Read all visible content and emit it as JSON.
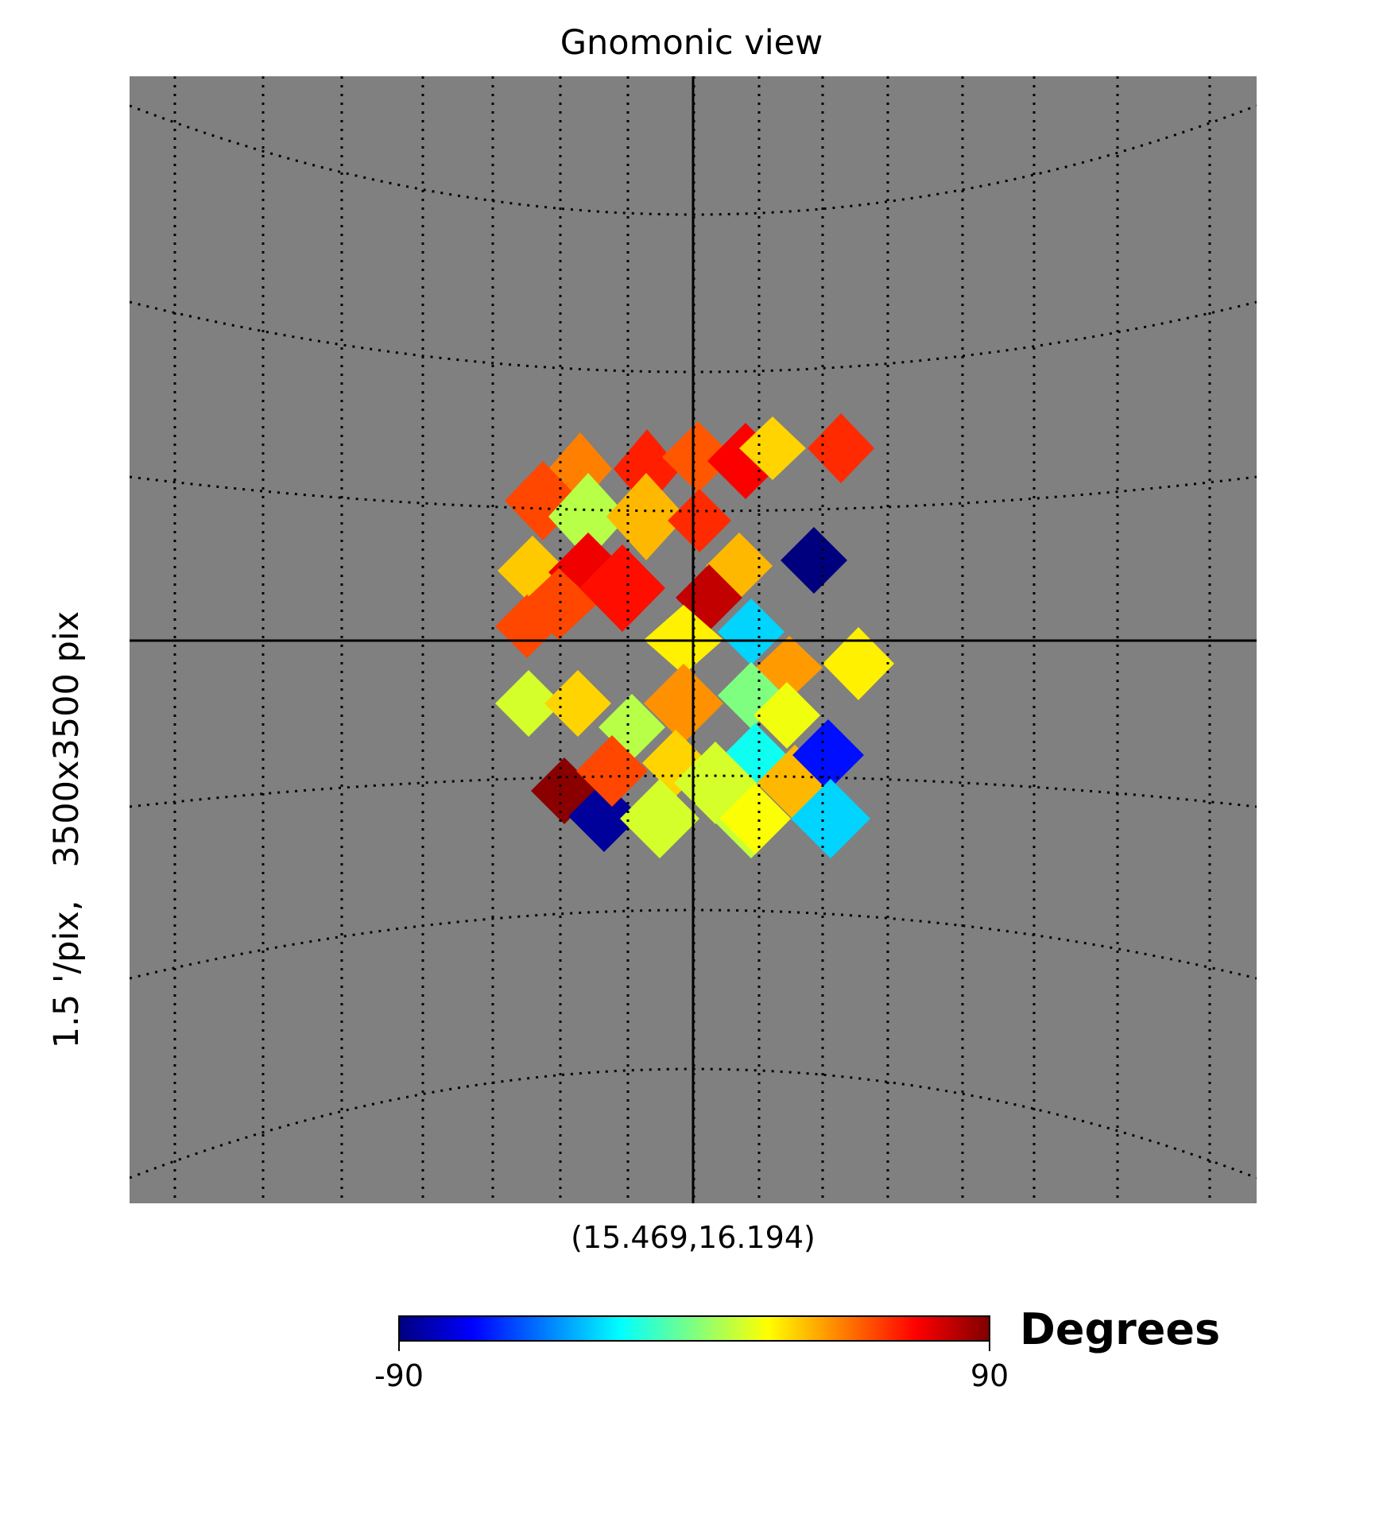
{
  "chart_data": {
    "type": "heatmap",
    "title": "Gnomonic view",
    "center_coords": "(15.469,16.194)",
    "side_label": "1.5 '/pix,   3500x3500 pix",
    "background_color": "#808080",
    "graticule": {
      "style": "dotted",
      "color": "#000000"
    },
    "crosshair": true,
    "colormap": "jet",
    "colorbar": {
      "label": "Degrees",
      "min": -90,
      "max": 90,
      "min_label": "-90",
      "max_label": "90",
      "stops": [
        "#00007f",
        "#0000ff",
        "#007fff",
        "#00ffff",
        "#7fff7f",
        "#ffff00",
        "#ff7f00",
        "#ff0000",
        "#7f0000"
      ]
    },
    "cells": [
      {
        "value": 45
      },
      {
        "value": 62
      },
      {
        "value": 55
      },
      {
        "value": 10
      },
      {
        "value": 35
      },
      {
        "value": 32
      },
      {
        "value": 70
      },
      {
        "value": 52
      },
      {
        "value": 68
      },
      {
        "value": 30
      },
      {
        "value": 60
      },
      {
        "value": 55
      },
      {
        "value": 65
      },
      {
        "value": 60
      },
      {
        "value": 35
      },
      {
        "value": 78
      },
      {
        "value": -90
      },
      {
        "value": 55
      },
      {
        "value": 25
      },
      {
        "value": -30
      },
      {
        "value": 25
      },
      {
        "value": 40
      },
      {
        "value": 0
      },
      {
        "value": 15
      },
      {
        "value": 30
      },
      {
        "value": 10
      },
      {
        "value": 42
      },
      {
        "value": 20
      },
      {
        "value": 30
      },
      {
        "value": -20
      },
      {
        "value": 15
      },
      {
        "value": 35
      },
      {
        "value": 12
      },
      {
        "value": -65
      },
      {
        "value": 88
      },
      {
        "value": -85
      },
      {
        "value": 55
      },
      {
        "value": 15
      },
      {
        "value": 22
      },
      {
        "value": -30
      }
    ]
  }
}
